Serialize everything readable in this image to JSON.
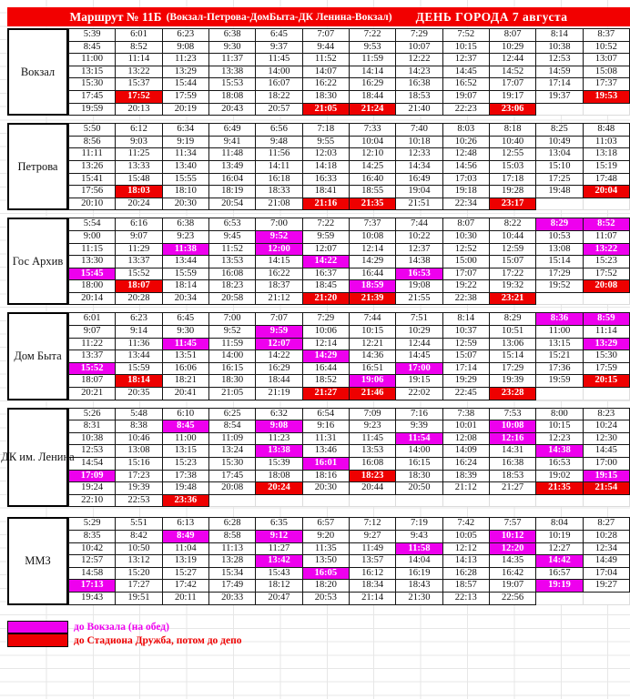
{
  "header": {
    "route": "Маршрут № 11Б",
    "detail": "(Вокзал-Петрова-ДомБыта-ДК Ленина-Вокзал)",
    "event": "ДЕНЬ ГОРОДА 7 августа"
  },
  "colors": {
    "header_bg": "#f20000",
    "red": "#ee0000",
    "magenta": "#ee00ee"
  },
  "legend": [
    {
      "color_key": "magenta",
      "label": "до Вокзала (на обед)"
    },
    {
      "color_key": "red",
      "label": "до Стадиона Дружба, потом до депо"
    }
  ],
  "tables": [
    {
      "stop": "Вокзал",
      "rows": [
        [
          "5:39",
          "6:01",
          "6:23",
          "6:38",
          "6:45",
          "7:07",
          "7:22",
          "7:29",
          "7:52",
          "8:07",
          "8:14",
          "8:37"
        ],
        [
          "8:45",
          "8:52",
          "9:08",
          "9:30",
          "9:37",
          "9:44",
          "9:53",
          "10:07",
          "10:15",
          "10:29",
          "10:38",
          "10:52"
        ],
        [
          "11:00",
          "11:14",
          "11:23",
          "11:37",
          "11:45",
          "11:52",
          "11:59",
          "12:22",
          "12:37",
          "12:44",
          "12:53",
          "13:07"
        ],
        [
          "13:15",
          "13:22",
          "13:29",
          "13:38",
          "14:00",
          "14:07",
          "14:14",
          "14:23",
          "14:45",
          "14:52",
          "14:59",
          "15:08"
        ],
        [
          "15:30",
          "15:37",
          "15:44",
          "15:53",
          "16:07",
          "16:22",
          "16:29",
          "16:38",
          "16:52",
          "17:07",
          "17:14",
          "17:37"
        ],
        [
          "17:45",
          "17:52*r",
          "17:59",
          "18:08",
          "18:22",
          "18:30",
          "18:44",
          "18:53",
          "19:07",
          "19:17",
          "19:37",
          "19:53*r"
        ],
        [
          "19:59",
          "20:13",
          "20:19",
          "20:43",
          "20:57",
          "21:05*r",
          "21:24*r",
          "21:40",
          "22:23",
          "23:06*r",
          "",
          ""
        ]
      ]
    },
    {
      "stop": "Петрова",
      "rows": [
        [
          "5:50",
          "6:12",
          "6:34",
          "6:49",
          "6:56",
          "7:18",
          "7:33",
          "7:40",
          "8:03",
          "8:18",
          "8:25",
          "8:48"
        ],
        [
          "8:56",
          "9:03",
          "9:19",
          "9:41",
          "9:48",
          "9:55",
          "10:04",
          "10:18",
          "10:26",
          "10:40",
          "10:49",
          "11:03"
        ],
        [
          "11:11",
          "11:25",
          "11:34",
          "11:48",
          "11:56",
          "12:03",
          "12:10",
          "12:33",
          "12:48",
          "12:55",
          "13:04",
          "13:18"
        ],
        [
          "13:26",
          "13:33",
          "13:40",
          "13:49",
          "14:11",
          "14:18",
          "14:25",
          "14:34",
          "14:56",
          "15:03",
          "15:10",
          "15:19"
        ],
        [
          "15:41",
          "15:48",
          "15:55",
          "16:04",
          "16:18",
          "16:33",
          "16:40",
          "16:49",
          "17:03",
          "17:18",
          "17:25",
          "17:48"
        ],
        [
          "17:56",
          "18:03*r",
          "18:10",
          "18:19",
          "18:33",
          "18:41",
          "18:55",
          "19:04",
          "19:18",
          "19:28",
          "19:48",
          "20:04*r"
        ],
        [
          "20:10",
          "20:24",
          "20:30",
          "20:54",
          "21:08",
          "21:16*r",
          "21:35*r",
          "21:51",
          "22:34",
          "23:17*r",
          "",
          ""
        ]
      ]
    },
    {
      "stop": "Гос Архив",
      "rows": [
        [
          "5:54",
          "6:16",
          "6:38",
          "6:53",
          "7:00",
          "7:22",
          "7:37",
          "7:44",
          "8:07",
          "8:22",
          "8:29*m",
          "8:52*m"
        ],
        [
          "9:00",
          "9:07",
          "9:23",
          "9:45",
          "9:52*m",
          "9:59",
          "10:08",
          "10:22",
          "10:30",
          "10:44",
          "10:53",
          "11:07"
        ],
        [
          "11:15",
          "11:29",
          "11:38*m",
          "11:52",
          "12:00*m",
          "12:07",
          "12:14",
          "12:37",
          "12:52",
          "12:59",
          "13:08",
          "13:22*m"
        ],
        [
          "13:30",
          "13:37",
          "13:44",
          "13:53",
          "14:15",
          "14:22*m",
          "14:29",
          "14:38",
          "15:00",
          "15:07",
          "15:14",
          "15:23"
        ],
        [
          "15:45*m",
          "15:52",
          "15:59",
          "16:08",
          "16:22",
          "16:37",
          "16:44",
          "16:53*m",
          "17:07",
          "17:22",
          "17:29",
          "17:52"
        ],
        [
          "18:00",
          "18:07*r",
          "18:14",
          "18:23",
          "18:37",
          "18:45",
          "18:59*m",
          "19:08",
          "19:22",
          "19:32",
          "19:52",
          "20:08*r"
        ],
        [
          "20:14",
          "20:28",
          "20:34",
          "20:58",
          "21:12",
          "21:20*r",
          "21:39*r",
          "21:55",
          "22:38",
          "23:21*r",
          "",
          ""
        ]
      ]
    },
    {
      "stop": "Дом Быта",
      "rows": [
        [
          "6:01",
          "6:23",
          "6:45",
          "7:00",
          "7:07",
          "7:29",
          "7:44",
          "7:51",
          "8:14",
          "8:29",
          "8:36*m",
          "8:59*m"
        ],
        [
          "9:07",
          "9:14",
          "9:30",
          "9:52",
          "9:59*m",
          "10:06",
          "10:15",
          "10:29",
          "10:37",
          "10:51",
          "11:00",
          "11:14"
        ],
        [
          "11:22",
          "11:36",
          "11:45*m",
          "11:59",
          "12:07*m",
          "12:14",
          "12:21",
          "12:44",
          "12:59",
          "13:06",
          "13:15",
          "13:29*m"
        ],
        [
          "13:37",
          "13:44",
          "13:51",
          "14:00",
          "14:22",
          "14:29*m",
          "14:36",
          "14:45",
          "15:07",
          "15:14",
          "15:21",
          "15:30"
        ],
        [
          "15:52*m",
          "15:59",
          "16:06",
          "16:15",
          "16:29",
          "16:44",
          "16:51",
          "17:00*m",
          "17:14",
          "17:29",
          "17:36",
          "17:59"
        ],
        [
          "18:07",
          "18:14*r",
          "18:21",
          "18:30",
          "18:44",
          "18:52",
          "19:06*m",
          "19:15",
          "19:29",
          "19:39",
          "19:59",
          "20:15*r"
        ],
        [
          "20:21",
          "20:35",
          "20:41",
          "21:05",
          "21:19",
          "21:27*r",
          "21:46*r",
          "22:02",
          "22:45",
          "23:28*r",
          "",
          ""
        ]
      ]
    },
    {
      "stop": "ДК им. Ленина",
      "rows": [
        [
          "5:26",
          "5:48",
          "6:10",
          "6:25",
          "6:32",
          "6:54",
          "7:09",
          "7:16",
          "7:38",
          "7:53",
          "8:00",
          "8:23"
        ],
        [
          "8:31",
          "8:38",
          "8:45*m",
          "8:54",
          "9:08*m",
          "9:16",
          "9:23",
          "9:39",
          "10:01",
          "10:08*m",
          "10:15",
          "10:24"
        ],
        [
          "10:38",
          "10:46",
          "11:00",
          "11:09",
          "11:23",
          "11:31",
          "11:45",
          "11:54*m",
          "12:08",
          "12:16*m",
          "12:23",
          "12:30"
        ],
        [
          "12:53",
          "13:08",
          "13:15",
          "13:24",
          "13:38*m",
          "13:46",
          "13:53",
          "14:00",
          "14:09",
          "14:31",
          "14:38*m",
          "14:45"
        ],
        [
          "14:54",
          "15:16",
          "15:23",
          "15:30",
          "15:39",
          "16:01*m",
          "16:08",
          "16:15",
          "16:24",
          "16:38",
          "16:53",
          "17:00"
        ],
        [
          "17:09*m",
          "17:23",
          "17:38",
          "17:45",
          "18:08",
          "18:16",
          "18:23*r",
          "18:30",
          "18:39",
          "18:53",
          "19:02",
          "19:15*m"
        ],
        [
          "19:24",
          "19:39",
          "19:48",
          "20:08",
          "20:24*r",
          "20:30",
          "20:44",
          "20:50",
          "21:12",
          "21:27",
          "21:35*r",
          "21:54*r"
        ],
        [
          "22:10",
          "22:53",
          "23:36*r",
          "",
          "",
          "",
          "",
          "",
          "",
          "",
          "",
          ""
        ]
      ]
    },
    {
      "stop": "ММЗ",
      "rows": [
        [
          "5:29",
          "5:51",
          "6:13",
          "6:28",
          "6:35",
          "6:57",
          "7:12",
          "7:19",
          "7:42",
          "7:57",
          "8:04",
          "8:27"
        ],
        [
          "8:35",
          "8:42",
          "8:49*m",
          "8:58",
          "9:12*m",
          "9:20",
          "9:27",
          "9:43",
          "10:05",
          "10:12*m",
          "10:19",
          "10:28"
        ],
        [
          "10:42",
          "10:50",
          "11:04",
          "11:13",
          "11:27",
          "11:35",
          "11:49",
          "11:58*m",
          "12:12",
          "12:20*m",
          "12:27",
          "12:34"
        ],
        [
          "12:57",
          "13:12",
          "13:19",
          "13:28",
          "13:42*m",
          "13:50",
          "13:57",
          "14:04",
          "14:13",
          "14:35",
          "14:42*m",
          "14:49"
        ],
        [
          "14:58",
          "15:20",
          "15:27",
          "15:34",
          "15:43",
          "16:05*m",
          "16:12",
          "16:19",
          "16:28",
          "16:42",
          "16:57",
          "17:04"
        ],
        [
          "17:13*m",
          "17:27",
          "17:42",
          "17:49",
          "18:12",
          "18:20",
          "18:34",
          "18:43",
          "18:57",
          "19:07",
          "19:19*m",
          "19:27"
        ],
        [
          "19:43",
          "19:51",
          "20:11",
          "20:33",
          "20:47",
          "20:53",
          "21:14",
          "21:30",
          "22:13",
          "22:56",
          "",
          ""
        ]
      ]
    }
  ]
}
